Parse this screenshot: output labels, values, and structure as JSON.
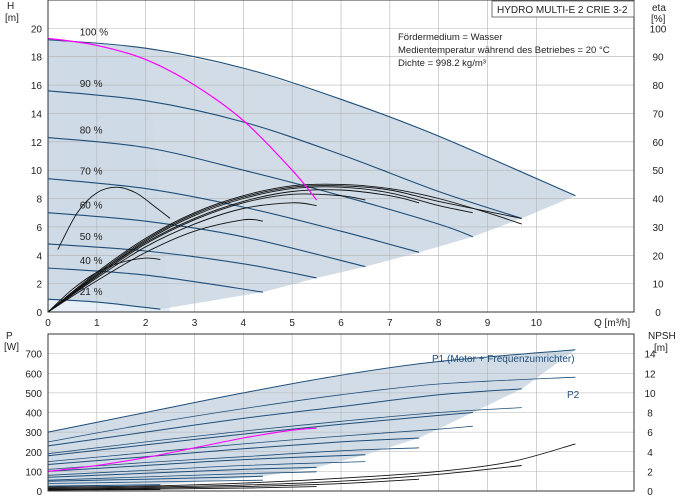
{
  "colors": {
    "envelope_fill": "#c9d6e3",
    "envelope_light": "#e6eef6",
    "pump_curve": "#1f4e79",
    "efficiency_curve": "#111111",
    "system_curve": "#ff00ff",
    "grid": "#b4b4b4"
  },
  "chart_data": [
    {
      "panel": "head",
      "type": "line",
      "model": "HYDRO MULTI-E 2 CRIE 3-2",
      "info_lines": [
        "Fördermedium = Wasser",
        "Medientemperatur während des Betriebes = 20 °C",
        "Dichte = 998.2 kg/m³"
      ],
      "xlabel": "Q [m³/h]",
      "ylabel_left": [
        "H",
        "[m]"
      ],
      "ylabel_right": [
        "eta",
        "[%]"
      ],
      "xlim": [
        0,
        12
      ],
      "ylim": [
        0,
        22
      ],
      "eta_lim": [
        0,
        110
      ],
      "x_ticks": [
        0,
        1,
        2,
        3,
        4,
        5,
        6,
        7,
        8,
        9,
        10
      ],
      "y_ticks": [
        0,
        2,
        4,
        6,
        8,
        10,
        12,
        14,
        16,
        18,
        20
      ],
      "eta_ticks": [
        0,
        10,
        20,
        30,
        40,
        50,
        60,
        70,
        80,
        90,
        100
      ],
      "grid": true,
      "speed_curves": [
        {
          "name": "100 %",
          "qmax": 10.8,
          "x": [
            0,
            2,
            4,
            6,
            8,
            10.8
          ],
          "y": [
            19.2,
            18.6,
            17.2,
            15.0,
            12.4,
            8.2
          ]
        },
        {
          "name": "90 %",
          "qmax": 9.7,
          "x": [
            0,
            2,
            4,
            6,
            8,
            9.7
          ],
          "y": [
            15.6,
            14.9,
            13.4,
            11.1,
            8.5,
            6.6
          ]
        },
        {
          "name": "80 %",
          "qmax": 8.7,
          "x": [
            0,
            2,
            4,
            6,
            8,
            8.7
          ],
          "y": [
            12.3,
            11.6,
            10.0,
            8.2,
            6.2,
            5.3
          ]
        },
        {
          "name": "70 %",
          "qmax": 7.6,
          "x": [
            0,
            2,
            4,
            6,
            7.6
          ],
          "y": [
            9.4,
            8.7,
            7.4,
            5.7,
            4.2
          ]
        },
        {
          "name": "60 %",
          "qmax": 6.5,
          "x": [
            0,
            2,
            4,
            6.5
          ],
          "y": [
            7.0,
            6.4,
            5.3,
            3.2
          ]
        },
        {
          "name": "50 %",
          "qmax": 5.5,
          "x": [
            0,
            2,
            4,
            5.5
          ],
          "y": [
            4.8,
            4.3,
            3.4,
            2.4
          ]
        },
        {
          "name": "40 %",
          "qmax": 4.4,
          "x": [
            0,
            2,
            4.4
          ],
          "y": [
            3.1,
            2.6,
            1.4
          ]
        },
        {
          "name": "21 %",
          "qmax": 2.3,
          "x": [
            0,
            1,
            2.3
          ],
          "y": [
            0.9,
            0.7,
            0.2
          ]
        }
      ],
      "eta_curves": [
        {
          "x": [
            0,
            1,
            2,
            3,
            4,
            5,
            6,
            7,
            8,
            9,
            9.7
          ],
          "y": [
            0,
            14,
            26,
            35,
            41,
            44.5,
            45,
            43.5,
            40,
            35,
            31
          ]
        },
        {
          "x": [
            0,
            1,
            2,
            3,
            4,
            5,
            6,
            7,
            8,
            9.7
          ],
          "y": [
            0,
            13.5,
            25.5,
            34.5,
            40.5,
            44,
            44.5,
            43,
            39,
            33
          ]
        },
        {
          "x": [
            0,
            1,
            2,
            3,
            4,
            5,
            6,
            7,
            8,
            8.7
          ],
          "y": [
            0,
            13,
            25,
            34,
            40,
            43.5,
            44,
            42,
            37.5,
            35
          ]
        },
        {
          "x": [
            0,
            1,
            2,
            3,
            4,
            5,
            6,
            7,
            7.6
          ],
          "y": [
            0,
            13,
            24.5,
            33,
            39,
            42.5,
            43,
            41,
            38.5
          ]
        },
        {
          "x": [
            0,
            1,
            2,
            3,
            4,
            5,
            6,
            6.5
          ],
          "y": [
            0,
            12.5,
            24,
            32.5,
            38.5,
            41.5,
            41,
            39.5
          ]
        },
        {
          "x": [
            0,
            1,
            2,
            3,
            4,
            5,
            5.5
          ],
          "y": [
            0,
            12,
            23,
            31,
            36.5,
            38.5,
            37.5
          ]
        },
        {
          "x": [
            0,
            1,
            2,
            3,
            4,
            4.4
          ],
          "y": [
            0,
            11,
            21,
            28.5,
            32.5,
            32
          ]
        },
        {
          "x": [
            0,
            0.5,
            1,
            1.5,
            2,
            2.3
          ],
          "y": [
            0,
            8,
            14,
            17.5,
            19,
            18.5
          ]
        },
        {
          "x": [
            0.2,
            0.6,
            1.0,
            1.4,
            1.8,
            2.2,
            2.5
          ],
          "y": [
            22,
            35,
            42,
            44,
            42,
            37,
            33
          ]
        }
      ],
      "system_curve": {
        "x": [
          0,
          1,
          2,
          3,
          4,
          5,
          5.5
        ],
        "y": [
          19.3,
          18.8,
          17.8,
          16.0,
          13.5,
          10.0,
          7.9
        ]
      }
    },
    {
      "panel": "power",
      "type": "line",
      "ylabel_left": [
        "P",
        "[W]"
      ],
      "ylabel_right": [
        "NPSH",
        "[m]"
      ],
      "xlim": [
        0,
        12
      ],
      "ylim": [
        0,
        800
      ],
      "npsh_lim": [
        0,
        16
      ],
      "x_ticks": [
        0,
        1,
        2,
        3,
        4,
        5,
        6,
        7,
        8,
        9,
        10
      ],
      "y_ticks": [
        0,
        100,
        200,
        300,
        400,
        500,
        600,
        700
      ],
      "npsh_ticks": [
        0,
        2,
        4,
        6,
        8,
        10,
        12,
        14
      ],
      "grid": true,
      "series_labels": [
        "P1 (Motor + Frequenzumrichter)",
        "P2"
      ],
      "p1_curves": [
        {
          "x": [
            0,
            2,
            4,
            6,
            8,
            10.8
          ],
          "y": [
            300,
            400,
            500,
            590,
            660,
            720
          ]
        },
        {
          "x": [
            0,
            2,
            4,
            6,
            8,
            9.7
          ],
          "y": [
            230,
            300,
            370,
            430,
            490,
            520
          ]
        },
        {
          "x": [
            0,
            2,
            4,
            6,
            8,
            8.7
          ],
          "y": [
            180,
            235,
            290,
            340,
            385,
            400
          ]
        },
        {
          "x": [
            0,
            2,
            4,
            6,
            7.6
          ],
          "y": [
            135,
            175,
            215,
            250,
            270
          ]
        },
        {
          "x": [
            0,
            2,
            4,
            6.5
          ],
          "y": [
            100,
            130,
            160,
            185
          ]
        },
        {
          "x": [
            0,
            2,
            4,
            5.5
          ],
          "y": [
            70,
            90,
            110,
            120
          ]
        },
        {
          "x": [
            0,
            2,
            4.4
          ],
          "y": [
            50,
            60,
            75
          ]
        },
        {
          "x": [
            0,
            1,
            2.3
          ],
          "y": [
            25,
            28,
            32
          ]
        }
      ],
      "p2_curves": [
        {
          "x": [
            0,
            2,
            4,
            6,
            8,
            10.8
          ],
          "y": [
            250,
            340,
            420,
            490,
            545,
            580
          ]
        },
        {
          "x": [
            0,
            2,
            4,
            6,
            8,
            9.7
          ],
          "y": [
            190,
            250,
            305,
            355,
            400,
            425
          ]
        },
        {
          "x": [
            0,
            2,
            4,
            6,
            8,
            8.7
          ],
          "y": [
            150,
            195,
            240,
            280,
            315,
            330
          ]
        },
        {
          "x": [
            0,
            2,
            4,
            6,
            7.6
          ],
          "y": [
            110,
            145,
            175,
            205,
            220
          ]
        },
        {
          "x": [
            0,
            2,
            4,
            6.5
          ],
          "y": [
            80,
            105,
            130,
            150
          ]
        },
        {
          "x": [
            0,
            2,
            4,
            5.5
          ],
          "y": [
            55,
            72,
            88,
            98
          ]
        },
        {
          "x": [
            0,
            2,
            4.4
          ],
          "y": [
            38,
            46,
            55
          ]
        }
      ],
      "npsh_curves": [
        {
          "x": [
            0,
            2,
            4,
            6,
            8,
            9.5,
            10.8
          ],
          "y": [
            0.4,
            0.5,
            0.8,
            1.3,
            2.0,
            3.0,
            4.8
          ]
        },
        {
          "x": [
            0,
            2,
            4,
            6,
            8,
            9.7
          ],
          "y": [
            0.3,
            0.4,
            0.6,
            1.0,
            1.7,
            2.6
          ]
        },
        {
          "x": [
            0,
            2,
            4,
            6,
            7.6
          ],
          "y": [
            0.2,
            0.3,
            0.45,
            0.75,
            1.2
          ]
        },
        {
          "x": [
            0,
            2,
            4,
            5.5
          ],
          "y": [
            0.15,
            0.2,
            0.3,
            0.45
          ]
        },
        {
          "x": [
            0,
            1,
            2.3
          ],
          "y": [
            0.1,
            0.12,
            0.15
          ]
        }
      ],
      "system_power": {
        "x": [
          0,
          1,
          2,
          3,
          4,
          5,
          5.5
        ],
        "y": [
          100,
          130,
          170,
          220,
          270,
          310,
          320
        ]
      }
    }
  ]
}
